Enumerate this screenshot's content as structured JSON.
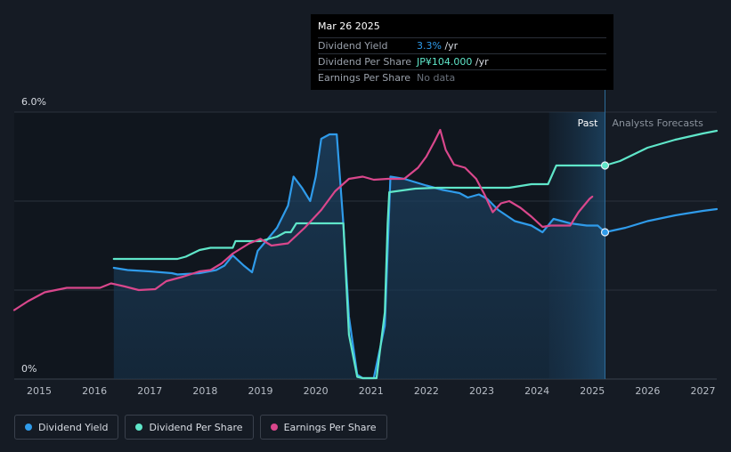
{
  "tooltip": {
    "date": "Mar 26 2025",
    "rows": [
      {
        "label": "Dividend Yield",
        "value": "3.3%",
        "unit": " /yr"
      },
      {
        "label": "Dividend Per Share",
        "value": "JP¥104.000",
        "unit": " /yr"
      },
      {
        "label": "Earnings Per Share",
        "value": "No data",
        "unit": ""
      }
    ]
  },
  "past_label": "Past",
  "forecast_label": "Analysts Forecasts",
  "legend": [
    {
      "label": "Dividend Yield",
      "color": "#2f9bea"
    },
    {
      "label": "Dividend Per Share",
      "color": "#5fe6c9"
    },
    {
      "label": "Earnings Per Share",
      "color": "#d9478c"
    }
  ],
  "chart_data": {
    "type": "line",
    "y_tick_labels": [
      "6.0%",
      "0%"
    ],
    "ylim": [
      0,
      6.0
    ],
    "xlim": [
      2014.55,
      2027.25
    ],
    "x_ticks": [
      "2015",
      "2016",
      "2017",
      "2018",
      "2019",
      "2020",
      "2021",
      "2022",
      "2023",
      "2024",
      "2025",
      "2026",
      "2027"
    ],
    "grid": true,
    "legend_position": "bottom-left",
    "past_end": 2025.23,
    "forecast_shade_start": 2024.22,
    "series": [
      {
        "name": "Dividend Yield",
        "color": "#2f9bea",
        "points": [
          [
            2016.35,
            2.5
          ],
          [
            2016.6,
            2.45
          ],
          [
            2017.0,
            2.42
          ],
          [
            2017.4,
            2.38
          ],
          [
            2017.5,
            2.35
          ],
          [
            2017.9,
            2.38
          ],
          [
            2018.2,
            2.45
          ],
          [
            2018.35,
            2.55
          ],
          [
            2018.5,
            2.78
          ],
          [
            2018.7,
            2.55
          ],
          [
            2018.85,
            2.4
          ],
          [
            2018.95,
            2.88
          ],
          [
            2019.1,
            3.1
          ],
          [
            2019.3,
            3.4
          ],
          [
            2019.5,
            3.9
          ],
          [
            2019.6,
            4.55
          ],
          [
            2019.75,
            4.3
          ],
          [
            2019.9,
            4.0
          ],
          [
            2020.0,
            4.55
          ],
          [
            2020.1,
            5.4
          ],
          [
            2020.25,
            5.5
          ],
          [
            2020.38,
            5.5
          ],
          [
            2020.5,
            3.5
          ],
          [
            2020.6,
            1.4
          ],
          [
            2020.75,
            0.1
          ],
          [
            2020.85,
            0.02
          ],
          [
            2021.05,
            0.02
          ],
          [
            2021.25,
            1.2
          ],
          [
            2021.35,
            4.55
          ],
          [
            2021.6,
            4.5
          ],
          [
            2022.0,
            4.35
          ],
          [
            2022.3,
            4.25
          ],
          [
            2022.6,
            4.18
          ],
          [
            2022.75,
            4.08
          ],
          [
            2022.95,
            4.15
          ],
          [
            2023.1,
            4.05
          ],
          [
            2023.3,
            3.8
          ],
          [
            2023.6,
            3.55
          ],
          [
            2023.9,
            3.45
          ],
          [
            2024.1,
            3.3
          ],
          [
            2024.3,
            3.6
          ],
          [
            2024.6,
            3.5
          ],
          [
            2024.9,
            3.45
          ],
          [
            2025.1,
            3.45
          ],
          [
            2025.23,
            3.3
          ]
        ]
      },
      {
        "name": "Dividend Yield forecast",
        "color": "#2f9bea",
        "points": [
          [
            2025.23,
            3.3
          ],
          [
            2025.6,
            3.4
          ],
          [
            2026.0,
            3.55
          ],
          [
            2026.5,
            3.68
          ],
          [
            2027.0,
            3.78
          ],
          [
            2027.25,
            3.82
          ]
        ]
      },
      {
        "name": "Dividend Per Share",
        "color": "#5fe6c9",
        "points": [
          [
            2016.35,
            2.7
          ],
          [
            2017.5,
            2.7
          ],
          [
            2017.65,
            2.75
          ],
          [
            2017.9,
            2.9
          ],
          [
            2018.1,
            2.95
          ],
          [
            2018.5,
            2.95
          ],
          [
            2018.55,
            3.1
          ],
          [
            2019.0,
            3.1
          ],
          [
            2019.3,
            3.2
          ],
          [
            2019.45,
            3.3
          ],
          [
            2019.55,
            3.3
          ],
          [
            2019.65,
            3.5
          ],
          [
            2020.5,
            3.5
          ],
          [
            2020.6,
            1.0
          ],
          [
            2020.75,
            0.05
          ],
          [
            2020.85,
            0.02
          ],
          [
            2021.1,
            0.02
          ],
          [
            2021.25,
            1.5
          ],
          [
            2021.3,
            3.5
          ],
          [
            2021.33,
            4.2
          ],
          [
            2021.8,
            4.28
          ],
          [
            2022.2,
            4.3
          ],
          [
            2023.5,
            4.3
          ],
          [
            2023.7,
            4.34
          ],
          [
            2023.9,
            4.38
          ],
          [
            2024.2,
            4.38
          ],
          [
            2024.35,
            4.8
          ],
          [
            2025.23,
            4.8
          ]
        ]
      },
      {
        "name": "Dividend Per Share forecast",
        "color": "#5fe6c9",
        "points": [
          [
            2025.23,
            4.8
          ],
          [
            2025.5,
            4.9
          ],
          [
            2026.0,
            5.2
          ],
          [
            2026.5,
            5.38
          ],
          [
            2027.0,
            5.52
          ],
          [
            2027.25,
            5.58
          ]
        ]
      },
      {
        "name": "Earnings Per Share",
        "color": "#d9478c",
        "points": [
          [
            2014.55,
            1.55
          ],
          [
            2014.8,
            1.75
          ],
          [
            2015.1,
            1.95
          ],
          [
            2015.5,
            2.05
          ],
          [
            2015.8,
            2.05
          ],
          [
            2016.1,
            2.05
          ],
          [
            2016.3,
            2.15
          ],
          [
            2016.55,
            2.08
          ],
          [
            2016.8,
            2.0
          ],
          [
            2017.1,
            2.02
          ],
          [
            2017.3,
            2.2
          ],
          [
            2017.6,
            2.3
          ],
          [
            2017.9,
            2.42
          ],
          [
            2018.1,
            2.45
          ],
          [
            2018.3,
            2.6
          ],
          [
            2018.5,
            2.82
          ],
          [
            2018.8,
            3.05
          ],
          [
            2019.0,
            3.15
          ],
          [
            2019.2,
            3.0
          ],
          [
            2019.5,
            3.05
          ],
          [
            2019.8,
            3.4
          ],
          [
            2020.1,
            3.8
          ],
          [
            2020.35,
            4.22
          ],
          [
            2020.6,
            4.5
          ],
          [
            2020.85,
            4.55
          ],
          [
            2021.05,
            4.48
          ],
          [
            2021.3,
            4.5
          ],
          [
            2021.6,
            4.5
          ],
          [
            2021.85,
            4.75
          ],
          [
            2022.0,
            5.0
          ],
          [
            2022.15,
            5.35
          ],
          [
            2022.25,
            5.6
          ],
          [
            2022.35,
            5.15
          ],
          [
            2022.5,
            4.82
          ],
          [
            2022.7,
            4.75
          ],
          [
            2022.9,
            4.5
          ],
          [
            2023.05,
            4.15
          ],
          [
            2023.2,
            3.75
          ],
          [
            2023.35,
            3.95
          ],
          [
            2023.5,
            4.0
          ],
          [
            2023.7,
            3.85
          ],
          [
            2023.9,
            3.65
          ],
          [
            2024.1,
            3.42
          ],
          [
            2024.25,
            3.45
          ],
          [
            2024.6,
            3.45
          ],
          [
            2024.75,
            3.75
          ],
          [
            2024.95,
            4.05
          ],
          [
            2025.0,
            4.1
          ]
        ]
      }
    ]
  }
}
